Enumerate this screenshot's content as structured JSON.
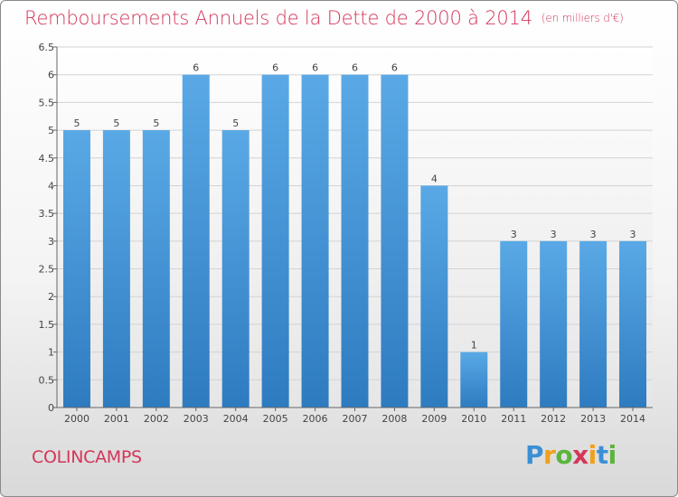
{
  "title": "Remboursements Annuels de la Dette de 2000 à 2014",
  "unit": "(en milliers d'€)",
  "commune": "COLINCAMPS",
  "logo": {
    "p": "P",
    "r": "r",
    "o": "o",
    "x": "x",
    "i1": "i",
    "t": "t",
    "i2": "i"
  },
  "colors": {
    "bar_top": "#5aa9e6",
    "bar_bottom": "#2e7bc0",
    "title": "#d4365a"
  },
  "chart_data": {
    "type": "bar",
    "categories": [
      "2000",
      "2001",
      "2002",
      "2003",
      "2004",
      "2005",
      "2006",
      "2007",
      "2008",
      "2009",
      "2010",
      "2011",
      "2012",
      "2013",
      "2014"
    ],
    "values": [
      5,
      5,
      5,
      6,
      5,
      6,
      6,
      6,
      6,
      4,
      1,
      3,
      3,
      3,
      3
    ],
    "data_labels": [
      "5",
      "5",
      "5",
      "6",
      "5",
      "6",
      "6",
      "6",
      "6",
      "4",
      "1",
      "3",
      "3",
      "3",
      "3"
    ],
    "ylim": [
      0,
      6.5
    ],
    "yticks": [
      "0",
      "0.5",
      "1",
      "1.5",
      "2",
      "2.5",
      "3",
      "3.5",
      "4",
      "4.5",
      "5",
      "5.5",
      "6",
      "6.5"
    ],
    "grid": true
  }
}
